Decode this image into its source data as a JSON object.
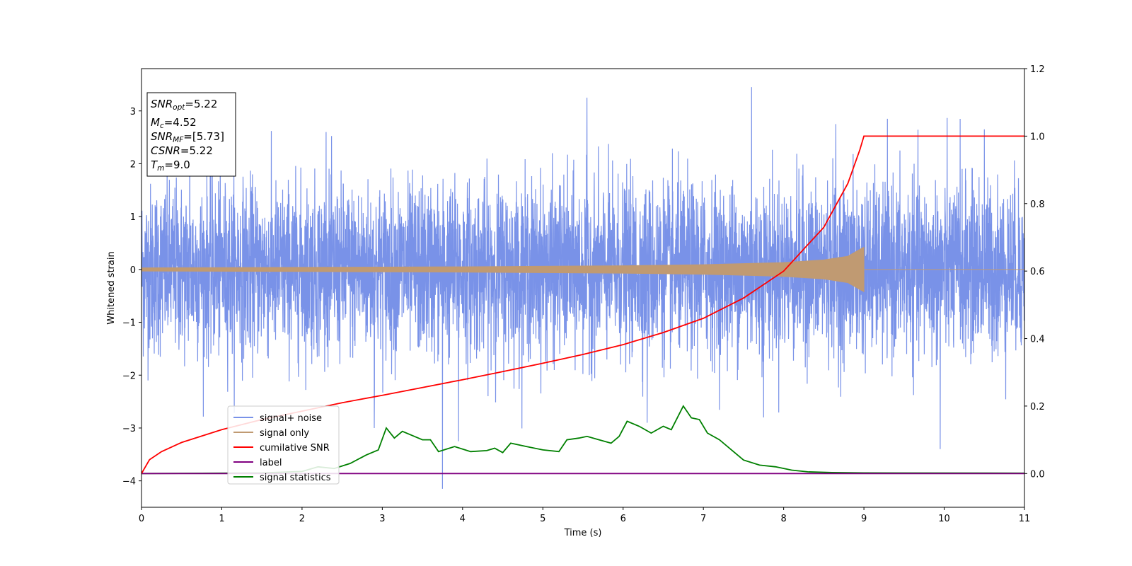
{
  "chart_data": {
    "type": "line",
    "xlabel": "Time (s)",
    "ylabel": "Whitened strain",
    "xlim": [
      0,
      11
    ],
    "ylim": [
      -4.5,
      3.8
    ],
    "y2lim": [
      -0.1,
      1.2
    ],
    "x_ticks": [
      "0",
      "1",
      "2",
      "3",
      "4",
      "5",
      "6",
      "7",
      "8",
      "9",
      "10",
      "11"
    ],
    "y_ticks": [
      "−4",
      "−3",
      "−2",
      "−1",
      "0",
      "1",
      "2",
      "3"
    ],
    "y2_ticks": [
      "0.0",
      "0.2",
      "0.4",
      "0.6",
      "0.8",
      "1.0",
      "1.2"
    ],
    "grid": false,
    "legend_placement": "lower-left",
    "annotation": {
      "snr_opt": {
        "main": "SNR",
        "sub": "opt",
        "value": "=5.22"
      },
      "mc": {
        "main": "M",
        "sub": "c",
        "value": "=4.52"
      },
      "snr_mf": {
        "main": "SNR",
        "sub": "MF",
        "value": "=[5.73]"
      },
      "csnr": {
        "main": "CSNR",
        "sub": "",
        "value": "=5.22"
      },
      "tm": {
        "main": "T",
        "sub": "m",
        "value": "=9.0"
      }
    },
    "series": [
      {
        "name": "signal+ noise",
        "color": "#7992e8",
        "axis": "left",
        "noise_std": 0.8,
        "spikes": [
          {
            "x": 7.6,
            "y": 3.45
          },
          {
            "x": 5.55,
            "y": 3.25
          },
          {
            "x": 10.2,
            "y": 2.85
          },
          {
            "x": 8.65,
            "y": 2.75
          },
          {
            "x": 10.5,
            "y": 2.65
          },
          {
            "x": 3.75,
            "y": -4.15
          },
          {
            "x": 3.95,
            "y": -3.25
          },
          {
            "x": 9.95,
            "y": -3.4
          },
          {
            "x": 7.75,
            "y": -2.8
          },
          {
            "x": 2.9,
            "y": -3.0
          },
          {
            "x": 6.3,
            "y": -2.9
          },
          {
            "x": 2.3,
            "y": 2.6
          },
          {
            "x": 0.6,
            "y": 2.5
          }
        ]
      },
      {
        "name": "signal only",
        "color": "#c09a72",
        "axis": "left",
        "envelope": [
          [
            0,
            0.03
          ],
          [
            2,
            0.04
          ],
          [
            4,
            0.05
          ],
          [
            6,
            0.07
          ],
          [
            7,
            0.09
          ],
          [
            8,
            0.13
          ],
          [
            8.5,
            0.18
          ],
          [
            8.8,
            0.25
          ],
          [
            8.95,
            0.38
          ],
          [
            9.0,
            0.42
          ],
          [
            9.0,
            0.0
          ],
          [
            11,
            0.0
          ]
        ]
      },
      {
        "name": "cumilative SNR",
        "color": "#ff0000",
        "axis": "right",
        "points": [
          [
            0,
            0.0
          ],
          [
            0.1,
            0.041
          ],
          [
            0.25,
            0.065
          ],
          [
            0.5,
            0.092
          ],
          [
            1,
            0.13
          ],
          [
            1.5,
            0.16
          ],
          [
            2,
            0.185
          ],
          [
            2.5,
            0.21
          ],
          [
            3,
            0.232
          ],
          [
            3.5,
            0.255
          ],
          [
            4,
            0.278
          ],
          [
            4.5,
            0.302
          ],
          [
            5,
            0.327
          ],
          [
            5.5,
            0.353
          ],
          [
            6,
            0.382
          ],
          [
            6.5,
            0.418
          ],
          [
            7,
            0.46
          ],
          [
            7.5,
            0.52
          ],
          [
            8,
            0.6
          ],
          [
            8.5,
            0.73
          ],
          [
            8.8,
            0.86
          ],
          [
            8.95,
            0.96
          ],
          [
            9.0,
            1.0
          ],
          [
            11,
            1.0
          ]
        ]
      },
      {
        "name": "label",
        "color": "#800080",
        "axis": "right",
        "points": [
          [
            0,
            0.0
          ],
          [
            11,
            0.0
          ]
        ]
      },
      {
        "name": "signal statistics",
        "color": "#008000",
        "axis": "right",
        "points": [
          [
            0,
            0.0
          ],
          [
            1.0,
            0.001
          ],
          [
            1.5,
            0.002
          ],
          [
            2.0,
            0.006
          ],
          [
            2.2,
            0.02
          ],
          [
            2.4,
            0.015
          ],
          [
            2.6,
            0.03
          ],
          [
            2.8,
            0.055
          ],
          [
            2.95,
            0.07
          ],
          [
            3.05,
            0.135
          ],
          [
            3.15,
            0.105
          ],
          [
            3.25,
            0.125
          ],
          [
            3.4,
            0.11
          ],
          [
            3.5,
            0.1
          ],
          [
            3.6,
            0.1
          ],
          [
            3.7,
            0.065
          ],
          [
            3.9,
            0.08
          ],
          [
            4.1,
            0.065
          ],
          [
            4.3,
            0.068
          ],
          [
            4.4,
            0.075
          ],
          [
            4.5,
            0.062
          ],
          [
            4.6,
            0.09
          ],
          [
            4.8,
            0.08
          ],
          [
            5.0,
            0.07
          ],
          [
            5.2,
            0.065
          ],
          [
            5.3,
            0.1
          ],
          [
            5.45,
            0.105
          ],
          [
            5.55,
            0.11
          ],
          [
            5.7,
            0.1
          ],
          [
            5.85,
            0.09
          ],
          [
            5.95,
            0.11
          ],
          [
            6.05,
            0.155
          ],
          [
            6.2,
            0.14
          ],
          [
            6.35,
            0.12
          ],
          [
            6.5,
            0.14
          ],
          [
            6.6,
            0.13
          ],
          [
            6.75,
            0.2
          ],
          [
            6.85,
            0.165
          ],
          [
            6.95,
            0.16
          ],
          [
            7.05,
            0.12
          ],
          [
            7.2,
            0.1
          ],
          [
            7.35,
            0.07
          ],
          [
            7.5,
            0.04
          ],
          [
            7.7,
            0.025
          ],
          [
            7.9,
            0.02
          ],
          [
            8.1,
            0.01
          ],
          [
            8.3,
            0.005
          ],
          [
            8.6,
            0.003
          ],
          [
            9.0,
            0.002
          ],
          [
            11,
            0.001
          ]
        ]
      }
    ]
  }
}
